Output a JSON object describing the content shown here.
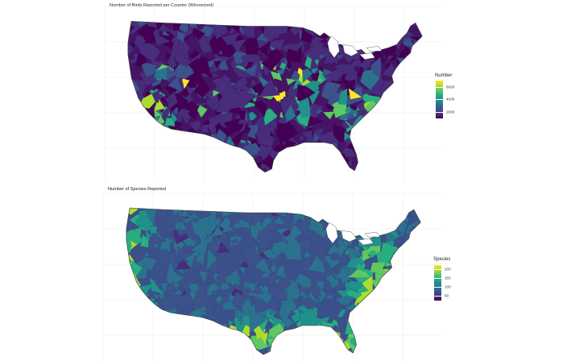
{
  "maps": [
    {
      "title": "Number of Birds Reported per Counter (Winsorized)",
      "legend": {
        "title": "Number",
        "ticks": [
          "6000",
          "4000",
          "2000"
        ],
        "tick_values": [
          6000,
          4000,
          2000
        ],
        "range": [
          900,
          7000
        ]
      },
      "palette": [
        "#440154",
        "#472d7b",
        "#3b528b",
        "#2c728e",
        "#21918c",
        "#28ae80",
        "#5ec962",
        "#addc30",
        "#fde725"
      ],
      "base_color": "#461465",
      "hotspot_regions": [
        "California coast",
        "Great Plains",
        "Midwest",
        "Mid-Atlantic coast",
        "Gulf coast"
      ]
    },
    {
      "title": "Number of Species Reported",
      "legend": {
        "title": "Species",
        "ticks": [
          "200",
          "150",
          "100",
          "50"
        ],
        "tick_values": [
          200,
          150,
          100,
          50
        ],
        "range": [
          20,
          225
        ]
      },
      "palette": [
        "#440154",
        "#472d7b",
        "#3b528b",
        "#2c728e",
        "#21918c",
        "#28ae80",
        "#5ec962",
        "#addc30",
        "#fde725"
      ],
      "base_color": "#3b4f8a",
      "hotspot_regions": [
        "Pacific coast",
        "Texas coast",
        "Florida",
        "Southeast"
      ]
    }
  ]
}
